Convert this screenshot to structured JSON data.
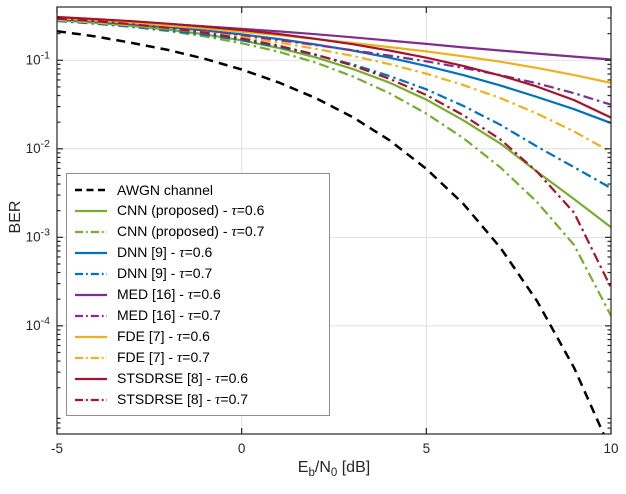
{
  "chart_data": {
    "type": "line",
    "title": "",
    "ylabel": "BER",
    "xlabel_parts": [
      "E",
      "b",
      "/N",
      "0",
      " [dB]"
    ],
    "tau_symbol": "τ",
    "xlim": [
      -5,
      10
    ],
    "ylim": [
      6e-06,
      0.4
    ],
    "x_ticks": [
      -5,
      0,
      5,
      10
    ],
    "y_ticks": [
      {
        "base": "10",
        "exp": "-1",
        "value": 0.1
      },
      {
        "base": "10",
        "exp": "-2",
        "value": 0.01
      },
      {
        "base": "10",
        "exp": "-3",
        "value": 0.001
      },
      {
        "base": "10",
        "exp": "-4",
        "value": 0.0001
      }
    ],
    "grid": true,
    "legend_position": "lower-left",
    "colors": {
      "axis": "#262626",
      "grid": "#e0e0e0",
      "tick_label": "#262626"
    },
    "x": [
      -5,
      -4,
      -3,
      -2,
      -1,
      0,
      1,
      2,
      3,
      4,
      5,
      6,
      7,
      8,
      9,
      10
    ],
    "series": [
      {
        "id": "awgn",
        "label_prefix": "AWGN channel",
        "tau_value": "",
        "color": "#000000",
        "dash": "dashed",
        "width": 2.5,
        "values": [
          0.213,
          0.187,
          0.158,
          0.131,
          0.104,
          0.0786,
          0.0563,
          0.0375,
          0.0229,
          0.0125,
          0.00595,
          0.00239,
          0.00077,
          0.00019,
          3.36e-05,
          3.9e-06
        ]
      },
      {
        "id": "cnn-tau06",
        "label_prefix": "CNN (proposed) - ",
        "tau_value": "=0.6",
        "color": "#77AC30",
        "dash": "solid",
        "width": 2.2,
        "values": [
          0.285,
          0.266,
          0.245,
          0.222,
          0.196,
          0.168,
          0.138,
          0.108,
          0.08,
          0.056,
          0.036,
          0.021,
          0.0115,
          0.0055,
          0.0027,
          0.0013
        ]
      },
      {
        "id": "cnn-tau07",
        "label_prefix": "CNN (proposed) - ",
        "tau_value": "=0.7",
        "color": "#77AC30",
        "dash": "dashdot",
        "width": 2.2,
        "values": [
          0.28,
          0.261,
          0.239,
          0.214,
          0.186,
          0.156,
          0.125,
          0.0945,
          0.066,
          0.0425,
          0.025,
          0.0132,
          0.0062,
          0.0025,
          0.00082,
          0.00013
        ]
      },
      {
        "id": "dnn-tau06",
        "label_prefix": "DNN [9] - ",
        "tau_value": "=0.6",
        "color": "#0072BD",
        "dash": "solid",
        "width": 2.2,
        "values": [
          0.29,
          0.274,
          0.256,
          0.237,
          0.217,
          0.196,
          0.174,
          0.151,
          0.129,
          0.107,
          0.0865,
          0.068,
          0.052,
          0.0385,
          0.028,
          0.0195
        ]
      },
      {
        "id": "dnn-tau07",
        "label_prefix": "DNN [9] - ",
        "tau_value": "=0.7",
        "color": "#0072BD",
        "dash": "dashdot",
        "width": 2.2,
        "values": [
          0.278,
          0.26,
          0.24,
          0.218,
          0.194,
          0.168,
          0.142,
          0.115,
          0.09,
          0.0665,
          0.047,
          0.0305,
          0.0187,
          0.0106,
          0.0062,
          0.0036
        ]
      },
      {
        "id": "med-tau06",
        "label_prefix": "MED [16] - ",
        "tau_value": "=0.6",
        "color": "#7E2F8E",
        "dash": "solid",
        "width": 2.2,
        "values": [
          0.302,
          0.287,
          0.272,
          0.257,
          0.242,
          0.227,
          0.212,
          0.197,
          0.182,
          0.167,
          0.153,
          0.14,
          0.129,
          0.119,
          0.11,
          0.102
        ]
      },
      {
        "id": "med-tau07",
        "label_prefix": "MED [16] - ",
        "tau_value": "=0.7",
        "color": "#7E2F8E",
        "dash": "dashdot",
        "width": 2.2,
        "values": [
          0.29,
          0.272,
          0.253,
          0.233,
          0.212,
          0.19,
          0.169,
          0.149,
          0.13,
          0.113,
          0.0975,
          0.082,
          0.068,
          0.055,
          0.0425,
          0.0315
        ]
      },
      {
        "id": "fde-tau06",
        "label_prefix": "FDE [7] - ",
        "tau_value": "=0.6",
        "color": "#EDB120",
        "dash": "solid",
        "width": 2.2,
        "values": [
          0.298,
          0.282,
          0.265,
          0.247,
          0.229,
          0.21,
          0.192,
          0.174,
          0.157,
          0.141,
          0.126,
          0.111,
          0.0965,
          0.082,
          0.068,
          0.0555
        ]
      },
      {
        "id": "fde-tau07",
        "label_prefix": "FDE [7] - ",
        "tau_value": "=0.7",
        "color": "#EDB120",
        "dash": "dashdot",
        "width": 2.2,
        "values": [
          0.285,
          0.267,
          0.248,
          0.228,
          0.206,
          0.183,
          0.159,
          0.135,
          0.112,
          0.0905,
          0.0705,
          0.0525,
          0.0375,
          0.025,
          0.0157,
          0.0092
        ]
      },
      {
        "id": "stsdrse-tau06",
        "label_prefix": "STSDRSE [8] - ",
        "tau_value": "=0.6",
        "color": "#A2142F",
        "dash": "solid",
        "width": 2.2,
        "values": [
          0.308,
          0.293,
          0.277,
          0.259,
          0.24,
          0.22,
          0.198,
          0.175,
          0.152,
          0.129,
          0.107,
          0.0865,
          0.0675,
          0.0505,
          0.0355,
          0.0225
        ]
      },
      {
        "id": "stsdrse-tau07",
        "label_prefix": "STSDRSE [8] - ",
        "tau_value": "=0.7",
        "color": "#A2142F",
        "dash": "dashdot",
        "width": 2.2,
        "values": [
          0.295,
          0.277,
          0.256,
          0.232,
          0.205,
          0.176,
          0.146,
          0.116,
          0.0875,
          0.062,
          0.0405,
          0.024,
          0.0128,
          0.0055,
          0.0019,
          0.00027
        ]
      }
    ]
  }
}
